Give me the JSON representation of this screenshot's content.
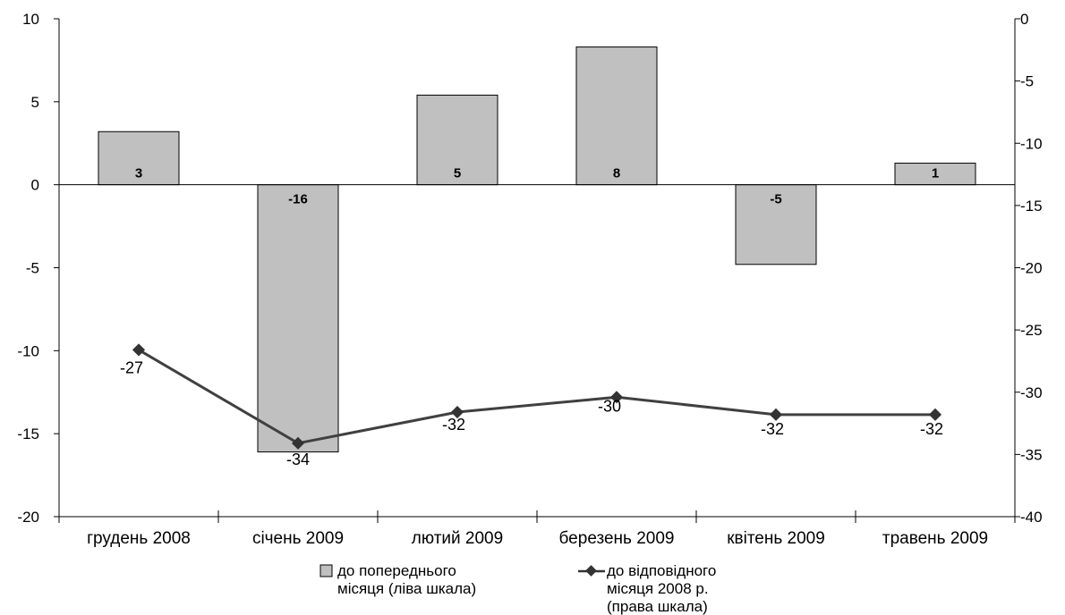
{
  "chart_data": {
    "type": "bar",
    "categories": [
      "грудень 2008",
      "січень 2009",
      "лютий 2009",
      "березень 2009",
      "квітень 2009",
      "травень 2009"
    ],
    "series": [
      {
        "name": "до попереднього місяця (ліва шкала)",
        "type": "bar",
        "axis": "left",
        "values": [
          3.2,
          -16.1,
          5.4,
          8.3,
          -4.8,
          1.3
        ],
        "labels": [
          "3",
          "-16",
          "5",
          "8",
          "-5",
          "1"
        ],
        "color": "#c0c0c0"
      },
      {
        "name": "до відповідного місяця 2008 р. (права шкала)",
        "type": "line",
        "axis": "right",
        "values": [
          -26.6,
          -34.1,
          -31.6,
          -30.4,
          -31.8,
          -31.8
        ],
        "labels": [
          "-27",
          "-34",
          "-32",
          "-30",
          "-32",
          "-32"
        ],
        "color": "#404040"
      }
    ],
    "y_left": {
      "range": [
        -20,
        10
      ],
      "ticks": [
        "10",
        "5",
        "0",
        "-5",
        "-10",
        "-15",
        "-20"
      ]
    },
    "y_right": {
      "range": [
        -40,
        0
      ],
      "ticks": [
        "0",
        "-5",
        "-10",
        "-15",
        "-20",
        "-25",
        "-30",
        "-35",
        "-40"
      ]
    },
    "grid": false,
    "legend": {
      "placement": "bottom",
      "bar_lines": [
        "до попереднього",
        "місяця (ліва шкала)"
      ],
      "line_lines": [
        "до відповідного",
        "місяця 2008 р.",
        "(права шкала)"
      ]
    }
  }
}
